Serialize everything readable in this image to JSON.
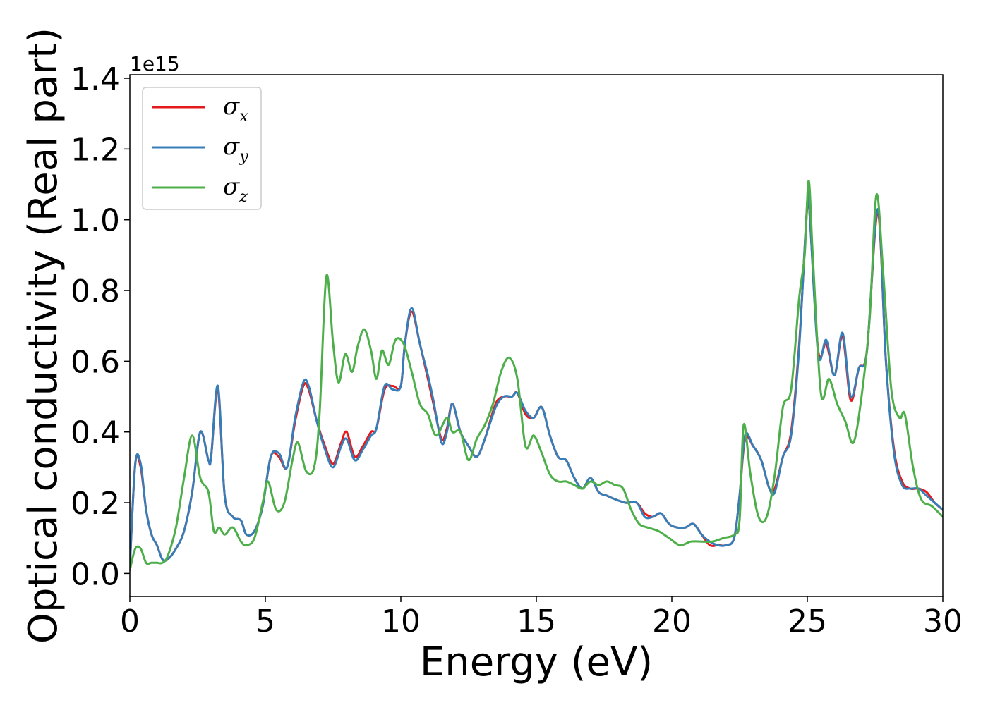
{
  "chart_data": {
    "type": "line",
    "title": "",
    "xlabel": "Energy (eV)",
    "ylabel": "Optical conductivity (Real part)",
    "y_offset_label": "1e15",
    "xlim": [
      0,
      30
    ],
    "ylim": [
      -0.065,
      1.41
    ],
    "x_ticks": [
      0,
      5,
      10,
      15,
      20,
      25,
      30
    ],
    "x_tick_labels": [
      "0",
      "5",
      "10",
      "15",
      "20",
      "25",
      "30"
    ],
    "y_ticks": [
      0.0,
      0.2,
      0.4,
      0.6,
      0.8,
      1.0,
      1.2,
      1.4
    ],
    "y_tick_labels": [
      "0.0",
      "0.2",
      "0.4",
      "0.6",
      "0.8",
      "1.0",
      "1.2",
      "1.4"
    ],
    "grid": false,
    "legend_position": "top-left",
    "series": [
      {
        "name": "σx",
        "symbol": "σ",
        "subscript": "x",
        "color": "#e41a1c",
        "x": [
          0,
          0.2,
          0.4,
          0.6,
          0.8,
          1.0,
          1.2,
          1.4,
          1.7,
          2.0,
          2.3,
          2.6,
          2.9,
          3.0,
          3.25,
          3.5,
          3.8,
          4.1,
          4.3,
          4.6,
          4.9,
          5.2,
          5.5,
          5.8,
          6.1,
          6.4,
          6.6,
          6.9,
          7.2,
          7.5,
          7.8,
          8.0,
          8.3,
          8.6,
          8.9,
          9.1,
          9.4,
          9.7,
          10.0,
          10.15,
          10.4,
          10.7,
          11.0,
          11.2,
          11.5,
          11.7,
          11.9,
          12.2,
          12.5,
          12.8,
          13.1,
          13.5,
          13.8,
          14.1,
          14.3,
          14.6,
          14.9,
          15.2,
          15.5,
          15.8,
          16.1,
          16.4,
          16.7,
          17.0,
          17.3,
          17.6,
          17.9,
          18.3,
          18.7,
          19.0,
          19.3,
          19.6,
          19.9,
          20.2,
          20.5,
          20.8,
          21.1,
          21.4,
          21.7,
          22.0,
          22.3,
          22.5,
          22.7,
          23.0,
          23.3,
          23.6,
          23.8,
          24.1,
          24.4,
          24.7,
          25.0,
          25.1,
          25.4,
          25.7,
          26.0,
          26.3,
          26.6,
          26.9,
          27.2,
          27.6,
          27.9,
          28.2,
          28.5,
          28.8,
          29.1,
          29.4,
          29.7,
          30.0
        ],
        "y": [
          0.02,
          0.31,
          0.3,
          0.18,
          0.11,
          0.08,
          0.04,
          0.04,
          0.07,
          0.12,
          0.23,
          0.4,
          0.32,
          0.33,
          0.52,
          0.22,
          0.16,
          0.15,
          0.11,
          0.12,
          0.19,
          0.33,
          0.33,
          0.3,
          0.43,
          0.53,
          0.52,
          0.43,
          0.36,
          0.31,
          0.37,
          0.4,
          0.33,
          0.36,
          0.4,
          0.41,
          0.52,
          0.53,
          0.53,
          0.65,
          0.74,
          0.65,
          0.55,
          0.48,
          0.38,
          0.41,
          0.48,
          0.4,
          0.36,
          0.33,
          0.38,
          0.48,
          0.5,
          0.5,
          0.51,
          0.45,
          0.44,
          0.47,
          0.39,
          0.33,
          0.32,
          0.27,
          0.24,
          0.27,
          0.23,
          0.22,
          0.21,
          0.2,
          0.2,
          0.17,
          0.16,
          0.17,
          0.14,
          0.13,
          0.13,
          0.14,
          0.11,
          0.08,
          0.08,
          0.08,
          0.1,
          0.22,
          0.38,
          0.36,
          0.32,
          0.24,
          0.24,
          0.33,
          0.4,
          0.65,
          1.04,
          1.0,
          0.63,
          0.65,
          0.56,
          0.67,
          0.49,
          0.58,
          0.63,
          1.02,
          0.6,
          0.35,
          0.26,
          0.24,
          0.24,
          0.23,
          0.2,
          0.18
        ]
      },
      {
        "name": "σy",
        "symbol": "σ",
        "subscript": "y",
        "color": "#377eb8",
        "x": [
          0,
          0.2,
          0.4,
          0.6,
          0.8,
          1.0,
          1.2,
          1.4,
          1.7,
          2.0,
          2.3,
          2.6,
          2.9,
          3.0,
          3.25,
          3.5,
          3.8,
          4.1,
          4.3,
          4.6,
          4.9,
          5.2,
          5.5,
          5.8,
          6.1,
          6.4,
          6.6,
          6.9,
          7.2,
          7.5,
          7.8,
          8.0,
          8.3,
          8.6,
          8.9,
          9.1,
          9.4,
          9.7,
          10.0,
          10.15,
          10.4,
          10.7,
          11.0,
          11.2,
          11.5,
          11.7,
          11.9,
          12.2,
          12.5,
          12.8,
          13.1,
          13.5,
          13.8,
          14.1,
          14.3,
          14.6,
          14.9,
          15.2,
          15.5,
          15.8,
          16.1,
          16.4,
          16.7,
          17.0,
          17.3,
          17.6,
          17.9,
          18.3,
          18.7,
          19.0,
          19.3,
          19.6,
          19.9,
          20.2,
          20.5,
          20.8,
          21.1,
          21.4,
          21.7,
          22.0,
          22.3,
          22.5,
          22.7,
          23.0,
          23.3,
          23.6,
          23.8,
          24.1,
          24.4,
          24.7,
          25.0,
          25.1,
          25.4,
          25.7,
          26.0,
          26.3,
          26.6,
          26.9,
          27.2,
          27.6,
          27.9,
          28.2,
          28.5,
          28.8,
          29.1,
          29.4,
          29.7,
          30.0
        ],
        "y": [
          0.02,
          0.31,
          0.31,
          0.18,
          0.11,
          0.08,
          0.04,
          0.04,
          0.07,
          0.12,
          0.23,
          0.4,
          0.32,
          0.33,
          0.53,
          0.22,
          0.16,
          0.15,
          0.11,
          0.12,
          0.19,
          0.33,
          0.34,
          0.3,
          0.44,
          0.54,
          0.53,
          0.43,
          0.35,
          0.3,
          0.36,
          0.38,
          0.32,
          0.35,
          0.39,
          0.41,
          0.53,
          0.52,
          0.53,
          0.65,
          0.75,
          0.65,
          0.56,
          0.49,
          0.37,
          0.4,
          0.48,
          0.4,
          0.36,
          0.33,
          0.38,
          0.47,
          0.5,
          0.5,
          0.51,
          0.46,
          0.44,
          0.47,
          0.39,
          0.33,
          0.32,
          0.27,
          0.24,
          0.27,
          0.23,
          0.22,
          0.21,
          0.2,
          0.2,
          0.16,
          0.16,
          0.17,
          0.14,
          0.13,
          0.13,
          0.14,
          0.11,
          0.09,
          0.08,
          0.08,
          0.1,
          0.22,
          0.39,
          0.36,
          0.32,
          0.24,
          0.23,
          0.33,
          0.39,
          0.64,
          1.05,
          1.0,
          0.62,
          0.66,
          0.56,
          0.68,
          0.5,
          0.58,
          0.63,
          1.03,
          0.6,
          0.34,
          0.25,
          0.24,
          0.24,
          0.22,
          0.2,
          0.18
        ]
      },
      {
        "name": "σz",
        "symbol": "σ",
        "subscript": "z",
        "color": "#4daf4a",
        "x": [
          0,
          0.2,
          0.4,
          0.6,
          0.8,
          1.0,
          1.2,
          1.4,
          1.7,
          2.0,
          2.3,
          2.6,
          2.9,
          3.1,
          3.3,
          3.5,
          3.8,
          4.1,
          4.3,
          4.6,
          4.9,
          5.1,
          5.4,
          5.7,
          6.0,
          6.2,
          6.5,
          6.8,
          7.0,
          7.25,
          7.5,
          7.7,
          7.95,
          8.2,
          8.4,
          8.65,
          8.9,
          9.1,
          9.3,
          9.55,
          9.8,
          10.1,
          10.4,
          10.7,
          11.0,
          11.3,
          11.7,
          11.9,
          12.2,
          12.5,
          12.8,
          13.1,
          13.4,
          13.7,
          14.0,
          14.3,
          14.6,
          14.9,
          15.2,
          15.5,
          15.8,
          16.1,
          16.4,
          16.7,
          17.0,
          17.3,
          17.6,
          17.9,
          18.2,
          18.5,
          18.8,
          19.1,
          19.5,
          19.9,
          20.3,
          20.7,
          21.1,
          21.5,
          21.9,
          22.3,
          22.5,
          22.65,
          22.9,
          23.2,
          23.5,
          23.8,
          24.1,
          24.4,
          24.7,
          24.9,
          25.05,
          25.2,
          25.5,
          25.8,
          26.1,
          26.4,
          26.7,
          27.0,
          27.3,
          27.55,
          27.8,
          28.1,
          28.4,
          28.6,
          28.9,
          29.2,
          29.6,
          30.0
        ],
        "y": [
          0.01,
          0.07,
          0.07,
          0.03,
          0.03,
          0.03,
          0.03,
          0.05,
          0.13,
          0.27,
          0.39,
          0.27,
          0.23,
          0.12,
          0.13,
          0.11,
          0.13,
          0.09,
          0.08,
          0.1,
          0.2,
          0.26,
          0.18,
          0.2,
          0.32,
          0.37,
          0.29,
          0.3,
          0.45,
          0.84,
          0.65,
          0.54,
          0.62,
          0.57,
          0.64,
          0.69,
          0.63,
          0.55,
          0.63,
          0.59,
          0.66,
          0.65,
          0.57,
          0.48,
          0.45,
          0.39,
          0.44,
          0.4,
          0.4,
          0.32,
          0.38,
          0.42,
          0.48,
          0.57,
          0.61,
          0.55,
          0.36,
          0.39,
          0.34,
          0.28,
          0.26,
          0.26,
          0.25,
          0.24,
          0.26,
          0.25,
          0.26,
          0.25,
          0.24,
          0.18,
          0.14,
          0.13,
          0.12,
          0.1,
          0.08,
          0.09,
          0.09,
          0.09,
          0.1,
          0.11,
          0.15,
          0.42,
          0.28,
          0.16,
          0.16,
          0.28,
          0.47,
          0.52,
          0.78,
          0.9,
          1.11,
          0.9,
          0.51,
          0.55,
          0.48,
          0.43,
          0.37,
          0.5,
          0.72,
          1.07,
          0.85,
          0.52,
          0.44,
          0.45,
          0.3,
          0.21,
          0.19,
          0.16
        ]
      }
    ]
  }
}
